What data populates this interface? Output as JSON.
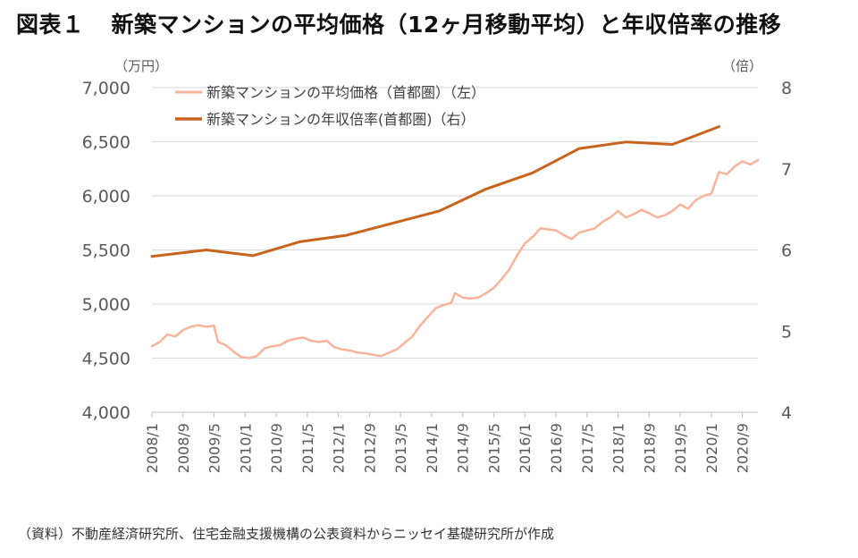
{
  "title": {
    "label": "図表１",
    "text": "新築マンションの平均価格（12ヶ月移動平均）と年収倍率の推移"
  },
  "source": "（資料）不動産経済研究所、住宅金融支援機構の公表資料からニッセイ基礎研究所が作成",
  "colors": {
    "price": "#f8b49a",
    "ratio": "#c9641e",
    "grid": "#d9d9d9",
    "axis": "#bfbfbf",
    "tick_text": "#595959"
  },
  "chart_data": {
    "type": "line",
    "left_axis": {
      "unit_label": "（万円）",
      "ylim": [
        4000,
        7000
      ],
      "ticks": [
        4000,
        4500,
        5000,
        5500,
        6000,
        6500,
        7000
      ],
      "tick_labels": [
        "4,000",
        "4,500",
        "5,000",
        "5,500",
        "6,000",
        "6,500",
        "7,000"
      ]
    },
    "right_axis": {
      "unit_label": "（倍）",
      "ylim": [
        4,
        8
      ],
      "ticks": [
        4,
        5,
        6,
        7,
        8
      ],
      "tick_labels": [
        "4",
        "5",
        "6",
        "7",
        "8"
      ]
    },
    "x_ticks": [
      "2008/1",
      "2008/9",
      "2009/5",
      "2010/1",
      "2010/9",
      "2011/5",
      "2012/1",
      "2012/9",
      "2013/5",
      "2014/1",
      "2014/9",
      "2015/5",
      "2016/1",
      "2016/9",
      "2017/5",
      "2018/1",
      "2018/9",
      "2019/5",
      "2020/1",
      "2020/9"
    ],
    "series": [
      {
        "name": "新築マンションの平均価格（首都圏）（左）",
        "axis": "left",
        "points": [
          [
            "2008/1",
            4610
          ],
          [
            "2008/3",
            4650
          ],
          [
            "2008/5",
            4720
          ],
          [
            "2008/7",
            4700
          ],
          [
            "2008/9",
            4760
          ],
          [
            "2008/11",
            4790
          ],
          [
            "2009/1",
            4805
          ],
          [
            "2009/3",
            4790
          ],
          [
            "2009/5",
            4800
          ],
          [
            "2009/6",
            4650
          ],
          [
            "2009/8",
            4620
          ],
          [
            "2009/10",
            4560
          ],
          [
            "2009/12",
            4510
          ],
          [
            "2010/2",
            4500
          ],
          [
            "2010/4",
            4520
          ],
          [
            "2010/6",
            4590
          ],
          [
            "2010/8",
            4610
          ],
          [
            "2010/10",
            4620
          ],
          [
            "2010/12",
            4660
          ],
          [
            "2011/2",
            4680
          ],
          [
            "2011/4",
            4690
          ],
          [
            "2011/6",
            4660
          ],
          [
            "2011/8",
            4650
          ],
          [
            "2011/10",
            4660
          ],
          [
            "2011/12",
            4600
          ],
          [
            "2012/2",
            4580
          ],
          [
            "2012/4",
            4570
          ],
          [
            "2012/6",
            4550
          ],
          [
            "2012/8",
            4545
          ],
          [
            "2012/10",
            4530
          ],
          [
            "2012/12",
            4520
          ],
          [
            "2013/2",
            4550
          ],
          [
            "2013/4",
            4580
          ],
          [
            "2013/6",
            4640
          ],
          [
            "2013/8",
            4700
          ],
          [
            "2013/10",
            4800
          ],
          [
            "2013/12",
            4880
          ],
          [
            "2014/2",
            4960
          ],
          [
            "2014/4",
            4990
          ],
          [
            "2014/6",
            5010
          ],
          [
            "2014/7",
            5100
          ],
          [
            "2014/9",
            5060
          ],
          [
            "2014/11",
            5050
          ],
          [
            "2015/1",
            5060
          ],
          [
            "2015/3",
            5100
          ],
          [
            "2015/5",
            5150
          ],
          [
            "2015/7",
            5230
          ],
          [
            "2015/9",
            5320
          ],
          [
            "2015/11",
            5450
          ],
          [
            "2016/1",
            5560
          ],
          [
            "2016/3",
            5620
          ],
          [
            "2016/5",
            5700
          ],
          [
            "2016/7",
            5690
          ],
          [
            "2016/9",
            5680
          ],
          [
            "2016/11",
            5640
          ],
          [
            "2017/1",
            5600
          ],
          [
            "2017/3",
            5660
          ],
          [
            "2017/5",
            5680
          ],
          [
            "2017/7",
            5700
          ],
          [
            "2017/9",
            5760
          ],
          [
            "2017/11",
            5800
          ],
          [
            "2018/1",
            5860
          ],
          [
            "2018/3",
            5800
          ],
          [
            "2018/5",
            5830
          ],
          [
            "2018/7",
            5870
          ],
          [
            "2018/9",
            5840
          ],
          [
            "2018/11",
            5800
          ],
          [
            "2019/1",
            5820
          ],
          [
            "2019/3",
            5860
          ],
          [
            "2019/5",
            5920
          ],
          [
            "2019/7",
            5880
          ],
          [
            "2019/9",
            5960
          ],
          [
            "2019/11",
            6000
          ],
          [
            "2020/1",
            6020
          ],
          [
            "2020/3",
            6220
          ],
          [
            "2020/5",
            6200
          ],
          [
            "2020/7",
            6270
          ],
          [
            "2020/9",
            6320
          ],
          [
            "2020/11",
            6290
          ],
          [
            "2021/1",
            6330
          ]
        ]
      },
      {
        "name": "新築マンションの年収倍率(首都圏)（右）",
        "axis": "right",
        "points": [
          [
            "2008/1",
            5.92
          ],
          [
            "2009/3",
            6.0
          ],
          [
            "2010/3",
            5.93
          ],
          [
            "2011/3",
            6.1
          ],
          [
            "2012/3",
            6.18
          ],
          [
            "2013/3",
            6.33
          ],
          [
            "2014/3",
            6.48
          ],
          [
            "2015/3",
            6.75
          ],
          [
            "2016/3",
            6.95
          ],
          [
            "2017/3",
            7.25
          ],
          [
            "2018/3",
            7.33
          ],
          [
            "2019/3",
            7.3
          ],
          [
            "2020/3",
            7.52
          ]
        ]
      }
    ]
  }
}
